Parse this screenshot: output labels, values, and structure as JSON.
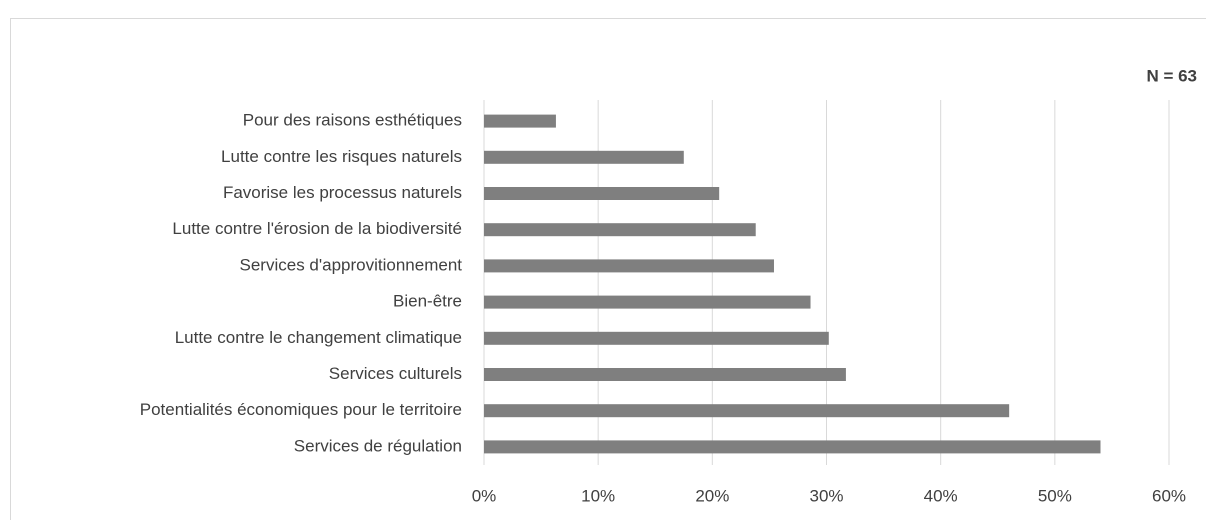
{
  "chart_data": {
    "type": "bar",
    "orientation": "horizontal",
    "annotation": "N = 63",
    "categories": [
      "Pour des raisons esthétiques",
      "Lutte contre les risques naturels",
      "Favorise les processus naturels",
      "Lutte contre l'érosion de la biodiversité",
      "Services d'approvitionnement",
      "Bien-être",
      "Lutte contre le changement climatique",
      "Services culturels",
      "Potentialités économiques pour le territoire",
      "Services de régulation"
    ],
    "values": [
      6.3,
      17.5,
      20.6,
      23.8,
      25.4,
      28.6,
      30.2,
      31.7,
      46.0,
      54.0
    ],
    "color": "#7f7f7f",
    "xlim": [
      0,
      60
    ],
    "xticks": [
      {
        "value": 0,
        "label": "0%"
      },
      {
        "value": 10,
        "label": "10%"
      },
      {
        "value": 20,
        "label": "20%"
      },
      {
        "value": 30,
        "label": "30%"
      },
      {
        "value": 40,
        "label": "40%"
      },
      {
        "value": 50,
        "label": "50%"
      },
      {
        "value": 60,
        "label": "60%"
      }
    ],
    "grid": true
  }
}
